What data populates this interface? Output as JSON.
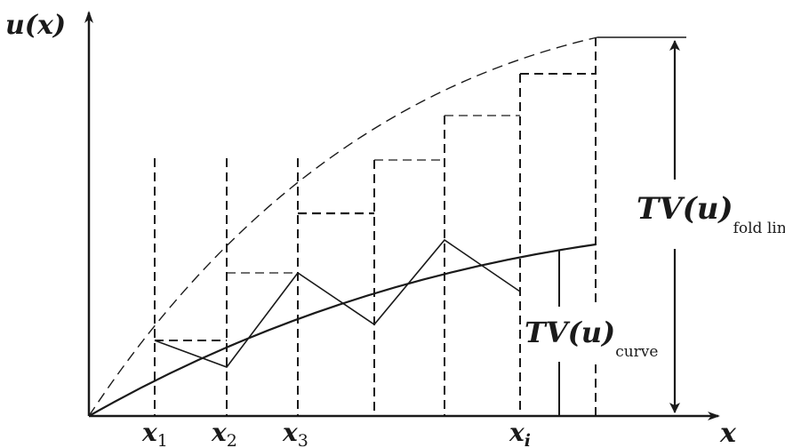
{
  "axes": {
    "y_label": "u(x)",
    "x_label": "x"
  },
  "ticks": {
    "x1": {
      "base": "x",
      "sub": "1"
    },
    "x2": {
      "base": "x",
      "sub": "2"
    },
    "x3": {
      "base": "x",
      "sub": "3"
    },
    "xi": {
      "base": "x",
      "sub": "i"
    }
  },
  "annotations": {
    "tv_fold": {
      "main": "TV(u)",
      "sub": "fold line"
    },
    "tv_curve": {
      "main": "TV(u)",
      "sub": "curve"
    }
  }
}
